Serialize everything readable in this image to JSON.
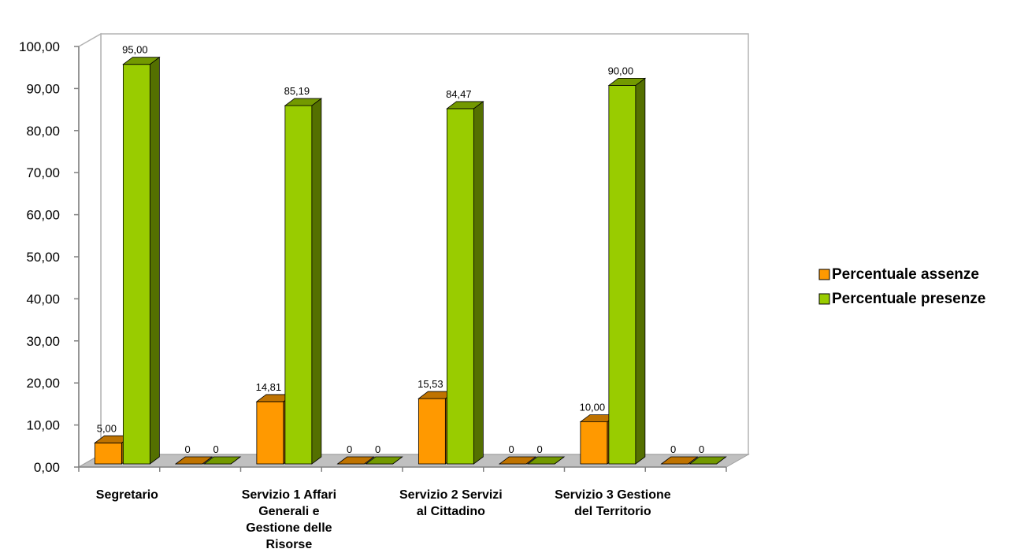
{
  "chart_data": {
    "type": "bar",
    "view": "3d-clustered-column",
    "categories": [
      {
        "lines": [
          "Segretario"
        ]
      },
      {
        "lines": []
      },
      {
        "lines": [
          "Servizio 1 Affari",
          "Generali  e",
          "Gestione delle",
          "Risorse"
        ]
      },
      {
        "lines": []
      },
      {
        "lines": [
          "Servizio 2 Servizi",
          "al Cittadino"
        ]
      },
      {
        "lines": []
      },
      {
        "lines": [
          "Servizio 3 Gestione",
          "del Territorio"
        ]
      },
      {
        "lines": []
      }
    ],
    "series": [
      {
        "name": "Percentuale assenze",
        "color": "#FF9900",
        "values": [
          5.0,
          0,
          14.81,
          0,
          15.53,
          0,
          10.0,
          0
        ],
        "labels": [
          "5,00",
          "0",
          "14,81",
          "0",
          "15,53",
          "0",
          "10,00",
          "0"
        ]
      },
      {
        "name": "Percentuale presenze",
        "color": "#99CC00",
        "values": [
          95.0,
          0,
          85.19,
          0,
          84.47,
          0,
          90.0,
          0
        ],
        "labels": [
          "95,00",
          "0",
          "85,19",
          "0",
          "84,47",
          "0",
          "90,00",
          "0"
        ]
      }
    ],
    "y_ticks": [
      "0,00",
      "10,00",
      "20,00",
      "30,00",
      "40,00",
      "50,00",
      "60,00",
      "70,00",
      "80,00",
      "90,00",
      "100,00"
    ],
    "ylim": [
      0,
      100
    ],
    "grid": false,
    "legend_position": "right"
  }
}
